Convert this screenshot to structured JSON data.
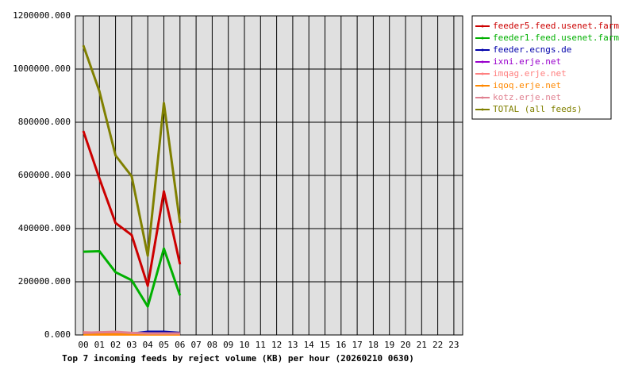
{
  "chart_data": {
    "type": "line",
    "title": "Top 7 incoming feeds by reject volume (KB) per hour (20260210 0630)",
    "categories": [
      "00",
      "01",
      "02",
      "03",
      "04",
      "05",
      "06",
      "07",
      "08",
      "09",
      "10",
      "11",
      "12",
      "13",
      "14",
      "15",
      "16",
      "17",
      "18",
      "19",
      "20",
      "21",
      "22",
      "23"
    ],
    "series": [
      {
        "name": "feeder5.feed.usenet.farm",
        "color": "#cc0000",
        "values": [
          767000,
          588000,
          421000,
          376000,
          185000,
          540000,
          266000,
          null,
          null,
          null,
          null,
          null,
          null,
          null,
          null,
          null,
          null,
          null,
          null,
          null,
          null,
          null,
          null,
          null
        ]
      },
      {
        "name": "feeder1.feed.usenet.farm",
        "color": "#00b000",
        "values": [
          313000,
          315000,
          236000,
          206000,
          107000,
          325000,
          149000,
          null,
          null,
          null,
          null,
          null,
          null,
          null,
          null,
          null,
          null,
          null,
          null,
          null,
          null,
          null,
          null,
          null
        ]
      },
      {
        "name": "feeder.ecngs.de",
        "color": "#0000aa",
        "values": [
          5000,
          5000,
          8000,
          5000,
          12000,
          12000,
          8000,
          null,
          null,
          null,
          null,
          null,
          null,
          null,
          null,
          null,
          null,
          null,
          null,
          null,
          null,
          null,
          null,
          null
        ]
      },
      {
        "name": "ixni.erje.net",
        "color": "#9900cc",
        "values": [
          3000,
          3000,
          3000,
          3000,
          3000,
          3000,
          3000,
          null,
          null,
          null,
          null,
          null,
          null,
          null,
          null,
          null,
          null,
          null,
          null,
          null,
          null,
          null,
          null,
          null
        ]
      },
      {
        "name": "imqag.erje.net",
        "color": "#ff8080",
        "values": [
          10000,
          8000,
          8000,
          6000,
          6000,
          6000,
          6000,
          null,
          null,
          null,
          null,
          null,
          null,
          null,
          null,
          null,
          null,
          null,
          null,
          null,
          null,
          null,
          null,
          null
        ]
      },
      {
        "name": "iqoq.erje.net",
        "color": "#ff8800",
        "values": [
          2000,
          2000,
          2000,
          2000,
          2000,
          2000,
          2000,
          null,
          null,
          null,
          null,
          null,
          null,
          null,
          null,
          null,
          null,
          null,
          null,
          null,
          null,
          null,
          null,
          null
        ]
      },
      {
        "name": "kotz.erje.net",
        "color": "#e08090",
        "values": [
          8000,
          10000,
          12000,
          8000,
          6000,
          6000,
          6000,
          null,
          null,
          null,
          null,
          null,
          null,
          null,
          null,
          null,
          null,
          null,
          null,
          null,
          null,
          null,
          null,
          null
        ]
      },
      {
        "name": "TOTAL (all feeds)",
        "color": "#808000",
        "values": [
          1089000,
          916000,
          675000,
          597000,
          298000,
          872000,
          421000,
          null,
          null,
          null,
          null,
          null,
          null,
          null,
          null,
          null,
          null,
          null,
          null,
          null,
          null,
          null,
          null,
          null
        ]
      }
    ],
    "ylim": [
      0,
      1200000
    ],
    "yticks": [
      {
        "value": 0,
        "label": "0.000"
      },
      {
        "value": 200000,
        "label": "200000.000"
      },
      {
        "value": 400000,
        "label": "400000.000"
      },
      {
        "value": 600000,
        "label": "600000.000"
      },
      {
        "value": 800000,
        "label": "800000.000"
      },
      {
        "value": 1000000,
        "label": "1000000.000"
      },
      {
        "value": 1200000,
        "label": "1200000.000"
      }
    ],
    "grid": true,
    "legend": "right"
  }
}
